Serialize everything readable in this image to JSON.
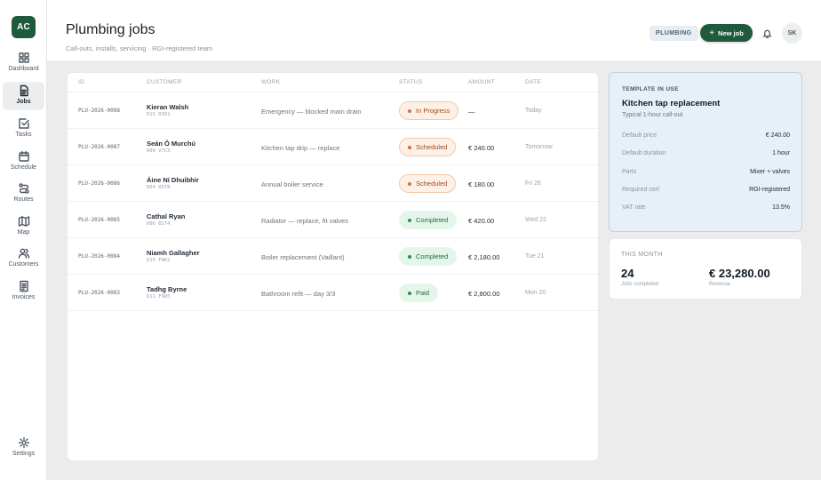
{
  "app": {
    "logo_text": "AC",
    "accent": "#1f5a3c"
  },
  "sidebar": {
    "items": [
      {
        "label": "Dashboard",
        "icon": "grid-icon",
        "active": false
      },
      {
        "label": "Jobs",
        "icon": "document-icon",
        "active": true
      },
      {
        "label": "Tasks",
        "icon": "checkbox-icon",
        "active": false
      },
      {
        "label": "Schedule",
        "icon": "calendar-icon",
        "active": false
      },
      {
        "label": "Routes",
        "icon": "route-icon",
        "active": false
      },
      {
        "label": "Map",
        "icon": "map-icon",
        "active": false
      },
      {
        "label": "Customers",
        "icon": "users-icon",
        "active": false
      },
      {
        "label": "Invoices",
        "icon": "invoice-icon",
        "active": false
      }
    ],
    "settings_label": "Settings"
  },
  "header": {
    "title": "Plumbing jobs",
    "subtitle": "Call-outs, installs, servicing · RGI-registered team",
    "tag": "PLUMBING",
    "new_job_label": "New job",
    "new_job_icon": "plus-icon",
    "avatar_initials": "SK"
  },
  "table": {
    "columns": [
      "ID",
      "CUSTOMER",
      "WORK",
      "STATUS",
      "AMOUNT",
      "DATE"
    ],
    "rows": [
      {
        "id": "PLU-2026-0088",
        "customer": "Kieran Walsh",
        "code": "D15 R3R1",
        "work": "Emergency — blocked main drain",
        "status": "In Progress",
        "status_kind": "progress",
        "amount": "—",
        "date": "Today"
      },
      {
        "id": "PLU-2026-0087",
        "customer": "Seán Ó Murchú",
        "code": "D09 V7C3",
        "work": "Kitchen tap drip — replace",
        "status": "Scheduled",
        "status_kind": "scheduled",
        "amount": "€ 240.00",
        "date": "Tomorrow"
      },
      {
        "id": "PLU-2026-0086",
        "customer": "Áine Ní Dhuibhir",
        "code": "D04 R5T8",
        "work": "Annual boiler service",
        "status": "Scheduled",
        "status_kind": "scheduled",
        "amount": "€ 180.00",
        "date": "Fri 26"
      },
      {
        "id": "PLU-2026-0085",
        "customer": "Cathal Ryan",
        "code": "D06 B1T4",
        "work": "Radiator — replace, fit valves",
        "status": "Completed",
        "status_kind": "done",
        "amount": "€ 420.00",
        "date": "Wed 22"
      },
      {
        "id": "PLU-2026-0084",
        "customer": "Niamh Gallagher",
        "code": "D15 F8K2",
        "work": "Boiler replacement (Vaillant)",
        "status": "Completed",
        "status_kind": "done",
        "amount": "€ 2,180.00",
        "date": "Tue 21"
      },
      {
        "id": "PLU-2026-0083",
        "customer": "Tadhg Byrne",
        "code": "D11 F9R5",
        "work": "Bathroom refit — day 3/3",
        "status": "Paid",
        "status_kind": "done",
        "amount": "€ 2,800.00",
        "date": "Mon 20"
      }
    ]
  },
  "template": {
    "eyebrow": "TEMPLATE IN USE",
    "title": "Kitchen tap replacement",
    "subtitle": "Typical 1-hour call-out",
    "fields": [
      {
        "k": "Default price",
        "v": "€ 240.00"
      },
      {
        "k": "Default duration",
        "v": "1 hour"
      },
      {
        "k": "Parts",
        "v": "Mixer + valves"
      },
      {
        "k": "Required cert",
        "v": "RGI-registered"
      },
      {
        "k": "VAT rate",
        "v": "13.5%"
      }
    ]
  },
  "month": {
    "eyebrow": "THIS MONTH",
    "jobs_value": "24",
    "jobs_label": "Jobs completed",
    "revenue_value": "€ 23,280.00",
    "revenue_label": "Revenue"
  }
}
